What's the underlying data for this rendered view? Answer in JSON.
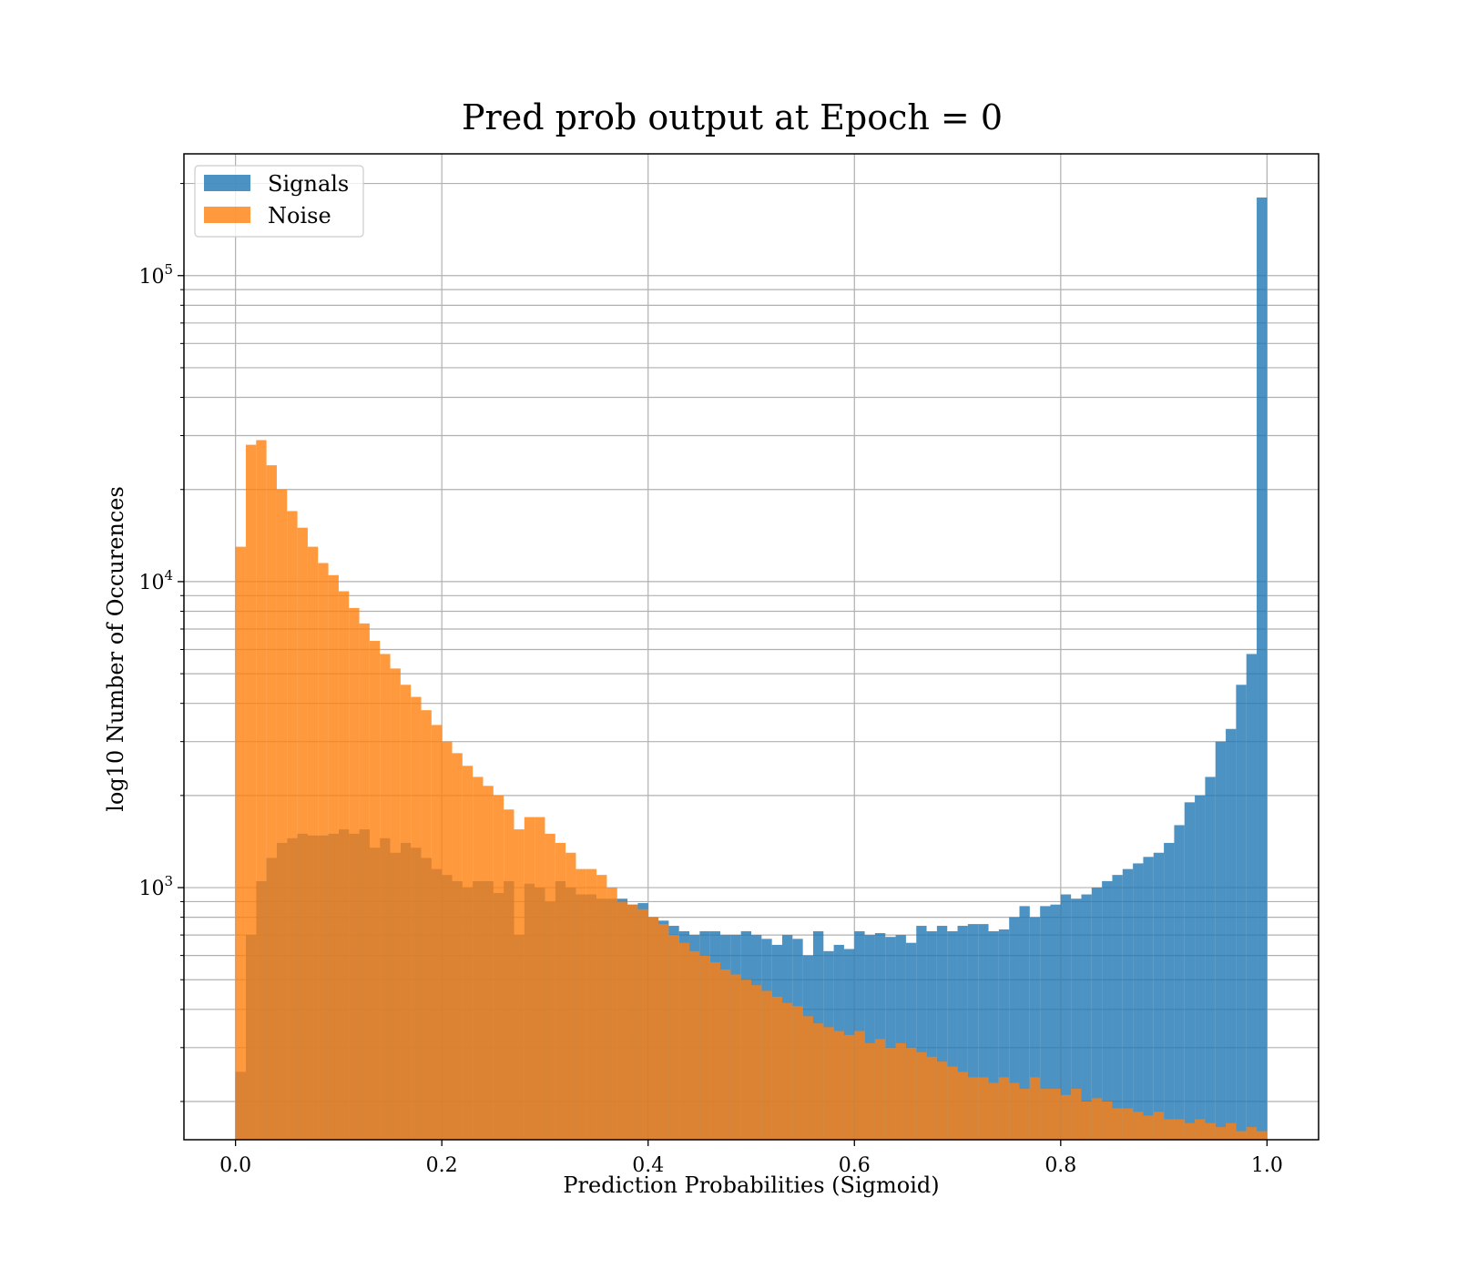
{
  "chart_data": {
    "type": "bar",
    "subtype": "histogram",
    "title": "Pred prob output at Epoch = 0",
    "xlabel": "Prediction Probabilities (Sigmoid)",
    "ylabel": "log10 Number of Occurences",
    "xlim": [
      -0.05,
      1.05
    ],
    "ylim": [
      150,
      250000
    ],
    "yscale": "log",
    "x_ticks": [
      0.0,
      0.2,
      0.4,
      0.6,
      0.8,
      1.0
    ],
    "x_tick_labels": [
      "0.0",
      "0.2",
      "0.4",
      "0.6",
      "0.8",
      "1.0"
    ],
    "y_major_ticks": [
      1000,
      10000,
      100000
    ],
    "y_tick_labels": [
      {
        "base": "10",
        "exp": "3"
      },
      {
        "base": "10",
        "exp": "4"
      },
      {
        "base": "10",
        "exp": "5"
      }
    ],
    "grid": true,
    "legend_position": "top-left",
    "bins": 100,
    "bin_range": [
      0.0,
      1.0
    ],
    "series": [
      {
        "name": "Signals",
        "color": "#1f77b4",
        "opacity": 0.8,
        "values": [
          250,
          700,
          1050,
          1250,
          1400,
          1450,
          1500,
          1480,
          1480,
          1500,
          1550,
          1500,
          1550,
          1350,
          1450,
          1300,
          1400,
          1350,
          1250,
          1150,
          1100,
          1050,
          1000,
          1050,
          1050,
          960,
          1050,
          700,
          1030,
          1000,
          900,
          1050,
          1000,
          950,
          950,
          920,
          920,
          920,
          880,
          890,
          800,
          780,
          750,
          720,
          700,
          720,
          720,
          700,
          700,
          720,
          700,
          680,
          650,
          700,
          680,
          600,
          720,
          620,
          650,
          630,
          720,
          700,
          710,
          690,
          700,
          660,
          750,
          720,
          750,
          720,
          750,
          760,
          760,
          720,
          730,
          800,
          870,
          800,
          870,
          880,
          950,
          920,
          950,
          1000,
          1050,
          1100,
          1150,
          1200,
          1260,
          1300,
          1400,
          1600,
          1900,
          2000,
          2300,
          3000,
          3300,
          4600,
          5800,
          180000
        ]
      },
      {
        "name": "Noise",
        "color": "#ff7f0e",
        "opacity": 0.8,
        "values": [
          13000,
          28000,
          29000,
          24000,
          20000,
          17000,
          15000,
          13000,
          11500,
          10500,
          9300,
          8200,
          7300,
          6400,
          5800,
          5200,
          4600,
          4200,
          3800,
          3400,
          3000,
          2750,
          2500,
          2300,
          2150,
          2000,
          1800,
          1550,
          1700,
          1700,
          1500,
          1400,
          1300,
          1150,
          1150,
          1100,
          1000,
          900,
          880,
          850,
          800,
          760,
          700,
          660,
          620,
          600,
          570,
          540,
          520,
          500,
          480,
          460,
          440,
          420,
          410,
          380,
          360,
          350,
          340,
          330,
          340,
          310,
          320,
          300,
          310,
          300,
          290,
          280,
          270,
          260,
          250,
          240,
          240,
          230,
          240,
          230,
          220,
          240,
          220,
          220,
          210,
          220,
          200,
          205,
          200,
          190,
          190,
          185,
          180,
          185,
          175,
          175,
          170,
          175,
          170,
          165,
          170,
          160,
          165,
          160
        ]
      }
    ]
  }
}
